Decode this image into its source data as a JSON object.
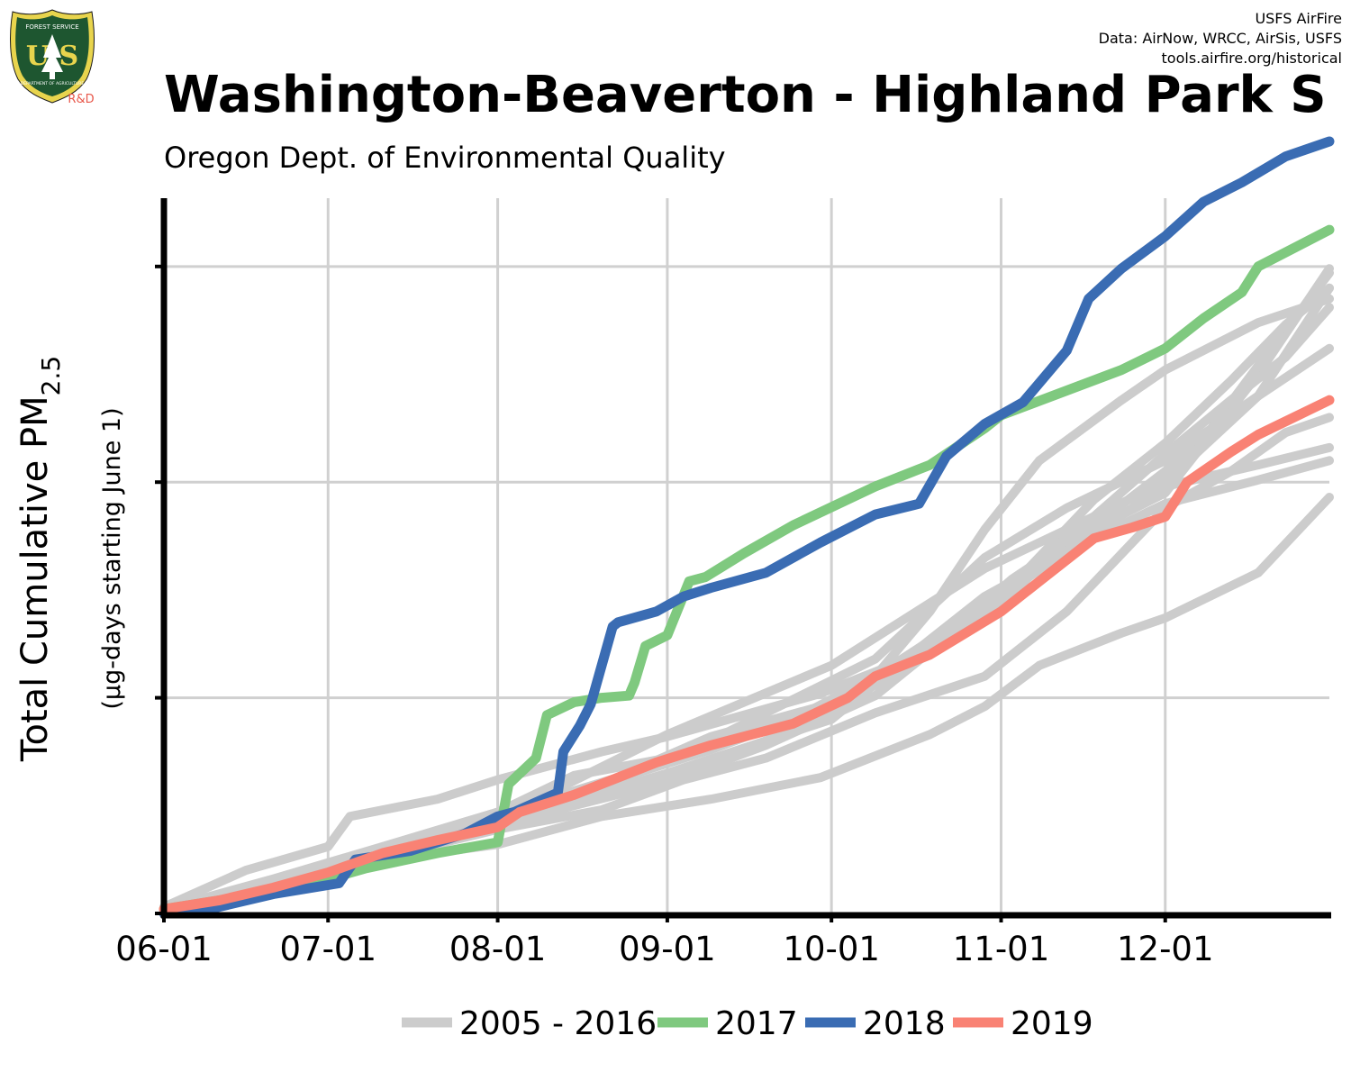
{
  "header": {
    "title": "Washington-Beaverton - Highland Park S",
    "subtitle": "Oregon Dept. of Environmental Quality",
    "credits": [
      "USFS AirFire",
      "Data: AirNow, WRCC, AirSis, USFS",
      "tools.airfire.org/historical"
    ]
  },
  "logo": {
    "icon": "usfs-shield-icon",
    "top_text": "FOREST SERVICE",
    "letters": "U S",
    "bottom_text": "DEPARTMENT OF AGRICULTURE",
    "tag": "R&D",
    "colors": {
      "shield": "#1e5630",
      "rim": "#e8d44d",
      "tag": "#e8574a"
    }
  },
  "chart_data": {
    "type": "line",
    "ylabel_main": "Total Cumulative PM",
    "ylabel_sub": "2.5",
    "ylabel_units": "(µg-days starting June 1)",
    "x_tick_labels": [
      "06-01",
      "07-01",
      "08-01",
      "09-01",
      "10-01",
      "11-01",
      "12-01"
    ],
    "x_tick_days": [
      0,
      30,
      61,
      92,
      122,
      153,
      183
    ],
    "xlim": [
      0,
      213
    ],
    "ylim": [
      0,
      3300
    ],
    "y_gridlines": [
      1000,
      2000,
      3000
    ],
    "y_tick_labels_shown": false,
    "grid": true,
    "legend": {
      "position": "bottom",
      "entries": [
        {
          "label": "2005 - 2016",
          "color": "#cccccc"
        },
        {
          "label": "2017",
          "color": "#7fc97f"
        },
        {
          "label": "2018",
          "color": "#3a6cb3"
        },
        {
          "label": "2019",
          "color": "#f98274"
        }
      ]
    },
    "series": [
      {
        "name": "2017",
        "color": "#7fc97f",
        "x": [
          0,
          15,
          30,
          37,
          50,
          61,
          63,
          68,
          70,
          75,
          80,
          85,
          86,
          88,
          92,
          96,
          99,
          106,
          115,
          130,
          140,
          150,
          153,
          175,
          183,
          190,
          197,
          200,
          213
        ],
        "y": [
          20,
          80,
          160,
          210,
          280,
          330,
          600,
          720,
          920,
          980,
          1000,
          1010,
          1070,
          1240,
          1290,
          1540,
          1560,
          1670,
          1800,
          1980,
          2080,
          2250,
          2310,
          2520,
          2620,
          2760,
          2880,
          3000,
          3170
        ]
      },
      {
        "name": "2018",
        "color": "#3a6cb3",
        "x": [
          0,
          5,
          10,
          20,
          32,
          35,
          45,
          55,
          61,
          64,
          72,
          73,
          76,
          78,
          82,
          83,
          90,
          95,
          100,
          110,
          120,
          130,
          138,
          143,
          150,
          157,
          165,
          169,
          175,
          183,
          190,
          197,
          205,
          213
        ],
        "y": [
          0,
          0,
          30,
          90,
          140,
          250,
          290,
          370,
          450,
          470,
          560,
          750,
          870,
          970,
          1330,
          1350,
          1400,
          1470,
          1510,
          1580,
          1720,
          1850,
          1900,
          2120,
          2270,
          2370,
          2610,
          2850,
          2990,
          3140,
          3300,
          3390,
          3510,
          3580
        ]
      },
      {
        "name": "2019",
        "color": "#f98274",
        "x": [
          0,
          10,
          20,
          30,
          40,
          50,
          61,
          65,
          75,
          90,
          100,
          115,
          125,
          130,
          140,
          153,
          160,
          170,
          177,
          183,
          187,
          195,
          200,
          213
        ],
        "y": [
          20,
          60,
          120,
          190,
          280,
          340,
          400,
          470,
          550,
          700,
          780,
          880,
          1000,
          1100,
          1200,
          1400,
          1540,
          1740,
          1790,
          1840,
          2000,
          2140,
          2220,
          2380
        ]
      },
      {
        "name": "",
        "color": "#cccccc",
        "x": [
          0,
          15,
          30,
          34,
          50,
          61,
          80,
          92,
          120,
          140,
          155,
          165,
          183,
          200,
          213
        ],
        "y": [
          30,
          200,
          310,
          450,
          530,
          620,
          750,
          820,
          1020,
          1220,
          1550,
          1720,
          1950,
          2500,
          2990
        ]
      },
      {
        "name": "",
        "color": "#cccccc",
        "x": [
          0,
          20,
          40,
          61,
          80,
          100,
          115,
          130,
          150,
          165,
          183,
          190,
          200,
          213
        ],
        "y": [
          20,
          160,
          310,
          470,
          600,
          760,
          900,
          1100,
          1430,
          1700,
          2050,
          2200,
          2540,
          2970
        ]
      },
      {
        "name": "",
        "color": "#cccccc",
        "x": [
          0,
          20,
          40,
          61,
          75,
          92,
          110,
          130,
          150,
          165,
          183,
          195,
          205,
          213
        ],
        "y": [
          10,
          150,
          300,
          470,
          640,
          720,
          850,
          1060,
          1360,
          1730,
          2130,
          2380,
          2580,
          2810
        ]
      },
      {
        "name": "",
        "color": "#cccccc",
        "x": [
          0,
          20,
          40,
          61,
          80,
          100,
          120,
          140,
          155,
          170,
          183,
          195,
          205,
          213
        ],
        "y": [
          10,
          140,
          280,
          420,
          600,
          820,
          960,
          1200,
          1520,
          1920,
          2180,
          2470,
          2730,
          2900
        ]
      },
      {
        "name": "",
        "color": "#cccccc",
        "x": [
          0,
          20,
          40,
          61,
          80,
          100,
          120,
          130,
          140,
          150,
          160,
          175,
          183,
          200,
          213
        ],
        "y": [
          10,
          130,
          270,
          420,
          560,
          700,
          900,
          1100,
          1400,
          1780,
          2100,
          2380,
          2520,
          2740,
          2850
        ]
      },
      {
        "name": "",
        "color": "#cccccc",
        "x": [
          0,
          20,
          40,
          61,
          92,
          110,
          130,
          150,
          165,
          183,
          200,
          213
        ],
        "y": [
          10,
          140,
          280,
          460,
          700,
          930,
          1180,
          1650,
          1880,
          2100,
          2400,
          2620
        ]
      },
      {
        "name": "",
        "color": "#cccccc",
        "x": [
          0,
          20,
          40,
          61,
          80,
          95,
          110,
          130,
          150,
          165,
          183,
          195,
          205,
          213
        ],
        "y": [
          10,
          130,
          260,
          390,
          480,
          620,
          720,
          930,
          1100,
          1400,
          1880,
          2050,
          2230,
          2300
        ]
      },
      {
        "name": "",
        "color": "#cccccc",
        "x": [
          0,
          20,
          40,
          61,
          92,
          110,
          130,
          150,
          165,
          183,
          200,
          213
        ],
        "y": [
          10,
          130,
          270,
          410,
          610,
          780,
          1010,
          1420,
          1680,
          1980,
          2080,
          2160
        ]
      },
      {
        "name": "",
        "color": "#cccccc",
        "x": [
          0,
          20,
          40,
          61,
          92,
          122,
          140,
          150,
          165,
          183,
          200,
          213
        ],
        "y": [
          10,
          140,
          270,
          420,
          650,
          900,
          1270,
          1470,
          1680,
          1900,
          2010,
          2100
        ]
      },
      {
        "name": "",
        "color": "#cccccc",
        "x": [
          0,
          20,
          40,
          61,
          80,
          100,
          120,
          140,
          150,
          160,
          175,
          183,
          200,
          213
        ],
        "y": [
          10,
          130,
          250,
          320,
          450,
          530,
          630,
          830,
          960,
          1150,
          1300,
          1370,
          1580,
          1930
        ]
      },
      {
        "name": "",
        "color": "#cccccc",
        "x": [
          0,
          20,
          40,
          61,
          92,
          122,
          150,
          165,
          183,
          200,
          213
        ],
        "y": [
          10,
          130,
          260,
          440,
          830,
          1150,
          1600,
          1780,
          2000,
          2400,
          2900
        ]
      }
    ]
  }
}
